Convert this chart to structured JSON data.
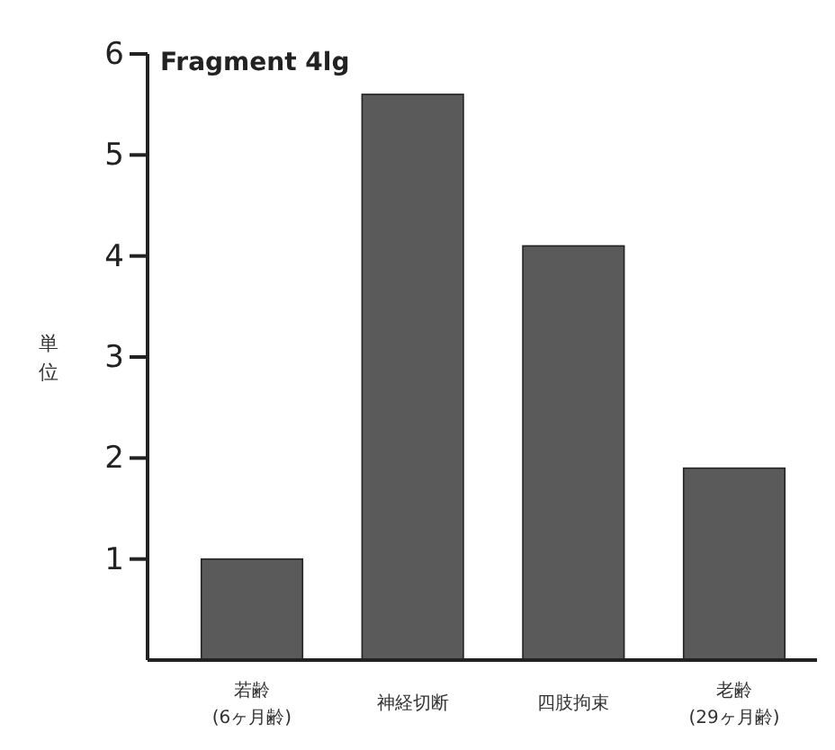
{
  "chart_data": {
    "type": "bar",
    "title": "Fragment 4lg",
    "ylabel": "単位",
    "categories": [
      "若齢\n(6ヶ月齢)",
      "神経切断",
      "四肢拘束",
      "老齢\n(29ヶ月齢)"
    ],
    "values": [
      1.0,
      5.6,
      4.1,
      1.9
    ],
    "color": "#5a5a5a",
    "ylim": [
      0,
      6
    ],
    "yticks": [
      1,
      2,
      3,
      4,
      5,
      6
    ],
    "grid": false
  }
}
